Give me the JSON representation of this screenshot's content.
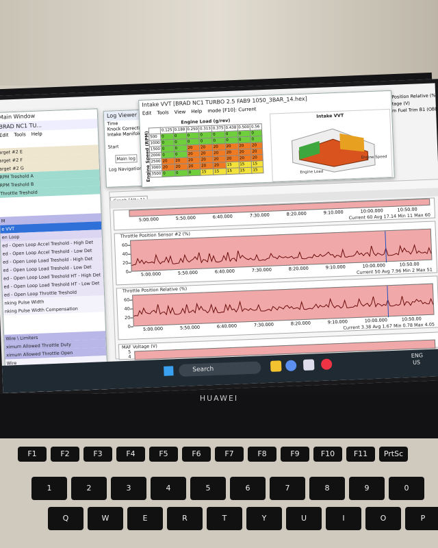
{
  "left_window": {
    "title": "Main Window",
    "tab": "BRAD NC1 TU...",
    "menu": [
      "Edit",
      "Tools",
      "Help"
    ],
    "items": [
      {
        "text": "arget #2 E",
        "color": "#efe6cf"
      },
      {
        "text": "arget #2 F",
        "color": "#efe6cf"
      },
      {
        "text": "arget #2 G",
        "color": "#efe6cf"
      },
      {
        "text": "RPM Treshold A",
        "color": "#9fdccf"
      },
      {
        "text": "RPM Treshold B",
        "color": "#9fdccf"
      },
      {
        "text": "Throttle Treshold",
        "color": "#9fdccf"
      },
      {
        "text": "M",
        "color": "#b9b6e8"
      },
      {
        "text": "e VVT",
        "color": "#2f6fd8"
      },
      {
        "text": "en Loop",
        "color": "#dcd6f2"
      },
      {
        "text": "ed - Open Loop Accel Treshold - High Det",
        "color": "#e9e3f6"
      },
      {
        "text": "ed - Open Loop Accel Treshold - Low Det",
        "color": "#e9e3f6"
      },
      {
        "text": "ed - Open Loop Load Treshold - High Det",
        "color": "#e9e3f6"
      },
      {
        "text": "ed - Open Loop Load Treshold - Low Det",
        "color": "#e9e3f6"
      },
      {
        "text": "ed - Open Loop Load Treshold HT - High Det",
        "color": "#e9e3f6"
      },
      {
        "text": "ed - Open Loop Load Treshold HT - Low Det",
        "color": "#e9e3f6"
      },
      {
        "text": "ed - Open Loop Throttle Treshold",
        "color": "#e9e3f6"
      },
      {
        "text": "nking Pulse Width",
        "color": "#f4f2fa"
      },
      {
        "text": "nking Pulse Width Compensation",
        "color": "#f4f2fa"
      },
      {
        "text": "Wire \\ Limiters",
        "color": "#b9b6e8"
      },
      {
        "text": "ximum Allowed Throttle Duty",
        "color": "#b9b6e8"
      },
      {
        "text": "ximum Allowed Throttle Open",
        "color": "#b9b6e8"
      },
      {
        "text": "Wire",
        "color": "#f4f2fa"
      }
    ]
  },
  "log_viewer": {
    "title": "Log Viewer",
    "checks": [
      "Time",
      "Knock Correctio",
      "Intake Manifold"
    ],
    "start": "Start",
    "main_log": "Main log",
    "navigation": "Log Navigation:"
  },
  "map_window": {
    "title": "Intake VVT [BRAD NC1 TURBO 2.5 FAB9 1050_3BAR_14.hex]",
    "menu": [
      "Edit",
      "Tools",
      "View",
      "Help",
      "mode [F10]: Current"
    ],
    "table_title": "Engine Load (g/rev)",
    "row_axis": "Engine Speed (RPM)",
    "columns": [
      "0.125",
      "0.188",
      "0.250",
      "0.313",
      "0.375",
      "0.438",
      "0.500",
      "0.56"
    ],
    "rows": [
      {
        "rpm": 500,
        "cells": [
          0,
          0,
          0,
          0,
          0,
          0,
          0,
          0
        ]
      },
      {
        "rpm": 1000,
        "cells": [
          0,
          0,
          0,
          0,
          0,
          0,
          0,
          0
        ]
      },
      {
        "rpm": 1500,
        "cells": [
          0,
          0,
          20,
          20,
          20,
          20,
          20,
          20
        ]
      },
      {
        "rpm": 2000,
        "cells": [
          0,
          0,
          20,
          20,
          20,
          20,
          20,
          20
        ]
      },
      {
        "rpm": 2500,
        "cells": [
          20,
          20,
          20,
          20,
          20,
          20,
          20,
          20
        ]
      },
      {
        "rpm": 3000,
        "cells": [
          20,
          20,
          20,
          20,
          20,
          15,
          15,
          15
        ]
      },
      {
        "rpm": 3500,
        "cells": [
          0,
          0,
          0,
          15,
          15,
          15,
          15,
          15
        ]
      }
    ],
    "chart_title": "Intake VVT",
    "chart_x_label": "Engine Load",
    "chart_y_label": "Engine Speed"
  },
  "graph": {
    "tab": "Graph [Alt+1]",
    "times": [
      "5:00.000",
      "5:50.000",
      "6:40.000",
      "7:30.000",
      "8:20.000",
      "9:10.000",
      "10:00.000",
      "10:50.00"
    ],
    "panels": [
      {
        "name": "Throttle Position Sensor #2 (%)",
        "ylim": [
          0,
          70
        ],
        "yticks": [
          60,
          40,
          20,
          0
        ],
        "status": "Current 50 Avg 7.96 Min 2 Max 51"
      },
      {
        "name": "Throttle Position Relative (%)",
        "ylim": [
          0,
          70
        ],
        "yticks": [
          60,
          40,
          20,
          0
        ],
        "status": "Current 3.38 Avg 1.67 Min 0.78 Max 4.05"
      }
    ],
    "top_status": "Current 60 Avg 17.14 Min 11 Max 60",
    "maf": {
      "name": "MAF Voltage (V)",
      "yticks": [
        5,
        4
      ]
    }
  },
  "right_list": [
    "Position Relative (%)",
    "tage (V)",
    "m Fuel Trim B1 (OBD) (%)"
  ],
  "taskbar": {
    "search": "Search",
    "lang": "ENG",
    "region": "US"
  },
  "laptop": {
    "brand": "HUAWEI"
  },
  "keys": {
    "fn_row": [
      "F1",
      "F2",
      "F3",
      "F4",
      "F5",
      "F6",
      "F7",
      "F8",
      "F9",
      "F10",
      "F11",
      "PrtSc"
    ],
    "num_row": [
      "1",
      "2",
      "3",
      "4",
      "5",
      "6",
      "7",
      "8",
      "9",
      "0"
    ],
    "letter_row": [
      "Q",
      "W",
      "E",
      "R",
      "T",
      "Y",
      "U",
      "I",
      "O",
      "P"
    ]
  }
}
